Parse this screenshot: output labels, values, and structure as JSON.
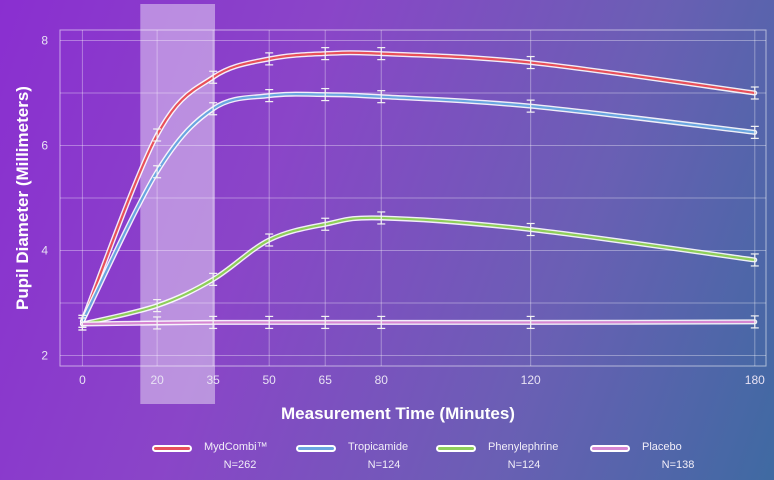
{
  "chart_data": {
    "type": "line",
    "title": "",
    "xlabel": "Measurement Time (Minutes)",
    "ylabel": "Pupil Diameter  (Millimeters)",
    "x": [
      0,
      20,
      35,
      50,
      65,
      80,
      120,
      180
    ],
    "x_ticks": [
      "0",
      "20",
      "35",
      "50",
      "65",
      "80",
      "120",
      "180"
    ],
    "y_ticks": [
      "2",
      "4",
      "6",
      "8"
    ],
    "xlim": [
      -6,
      183
    ],
    "ylim": [
      1.8,
      8.2
    ],
    "grid": true,
    "highlight_range": [
      15.5,
      35.5
    ],
    "legend_position": "bottom",
    "series": [
      {
        "name": "MydCombi™",
        "n": "N=262",
        "color": "#e8505a",
        "values": [
          2.65,
          6.2,
          7.3,
          7.65,
          7.75,
          7.75,
          7.58,
          7.0
        ]
      },
      {
        "name": "Tropicamide",
        "n": "N=124",
        "color": "#6aa6e0",
        "values": [
          2.65,
          5.5,
          6.7,
          6.95,
          6.97,
          6.93,
          6.75,
          6.25
        ]
      },
      {
        "name": "Phenylephrine",
        "n": "N=124",
        "color": "#8fcf5a",
        "values": [
          2.6,
          2.95,
          3.45,
          4.2,
          4.5,
          4.62,
          4.4,
          3.82
        ]
      },
      {
        "name": "Placebo",
        "n": "N=138",
        "color": "#d686d2",
        "values": [
          2.6,
          2.62,
          2.63,
          2.63,
          2.63,
          2.63,
          2.63,
          2.64
        ]
      }
    ]
  }
}
